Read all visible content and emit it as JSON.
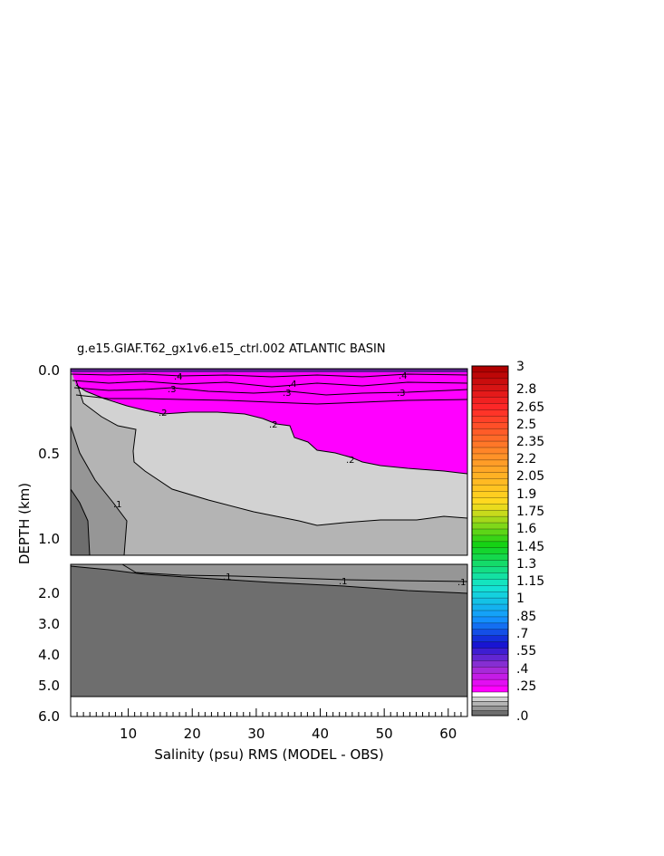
{
  "chart_data": {
    "type": "heatmap",
    "title": "g.e15.GIAF.T62_gx1v6.e15_ctrl.002 ATLANTIC BASIN",
    "xlabel": "Salinity (psu) RMS (MODEL - OBS)",
    "ylabel": "DEPTH (km)",
    "xlim": [
      1,
      63
    ],
    "x_ticks": [
      "10",
      "20",
      "30",
      "40",
      "50",
      "60"
    ],
    "upper_panel": {
      "ylim": [
        0,
        1.1
      ],
      "y_ticks": [
        "0.0",
        "0.5",
        "1.0"
      ]
    },
    "lower_panel": {
      "ylim": [
        1.4,
        6.0
      ],
      "y_ticks": [
        "2.0",
        "3.0",
        "4.0",
        "5.0",
        "6.0"
      ]
    },
    "contour_labels": [
      ".4",
      ".3",
      ".2",
      ".1"
    ],
    "colorbar": {
      "labels": [
        "3",
        "2.8",
        "2.65",
        "2.5",
        "2.35",
        "2.2",
        "2.05",
        "1.9",
        "1.75",
        "1.6",
        "1.45",
        "1.3",
        "1.15",
        "1",
        ".85",
        ".7",
        ".55",
        ".4",
        ".25",
        ".0"
      ],
      "colors": [
        "#b00000",
        "#ff1a1a",
        "#ff7f1a",
        "#ffd21a",
        "#14d214",
        "#14e6d2",
        "#1496ff",
        "#1414d2",
        "#9632d2",
        "#ff00ff",
        "#d2d2d2",
        "#b4b4b4",
        "#969696",
        "#6e6e6e"
      ]
    },
    "regions": [
      {
        "level": "0.25-0.4",
        "color": "#ff00ff",
        "extent": "upper ~0.1-0.6 km, widening eastward"
      },
      {
        "level": "0.2-0.25",
        "color": "#d2d2d2",
        "extent": "0.25-0.9 km"
      },
      {
        "level": "0.15-0.2",
        "color": "#b4b4b4",
        "extent": "0.9-1.8 km"
      },
      {
        "level": "0.1-0.15",
        "color": "#969696"
      },
      {
        "level": "0-0.1",
        "color": "#6e6e6e",
        "extent": "deep ocean 2-5.3 km"
      }
    ]
  }
}
